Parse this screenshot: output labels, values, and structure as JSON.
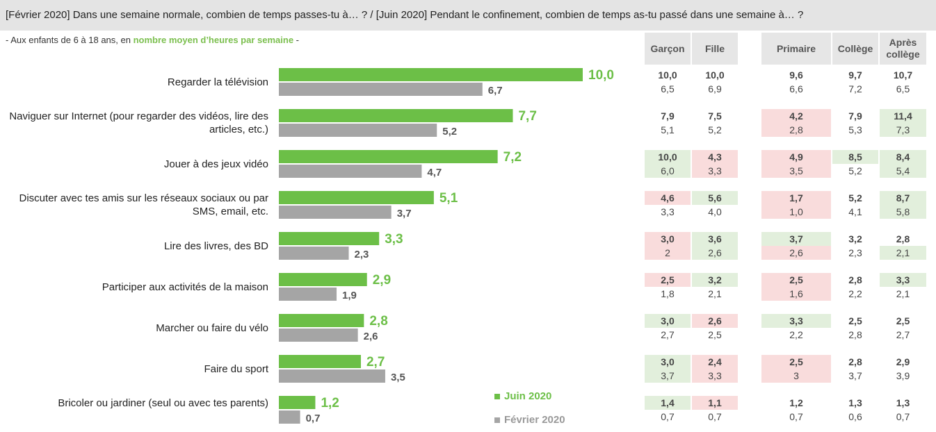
{
  "title": "[Février 2020] Dans une semaine normale, combien de temps passes-tu à… ? / [Juin 2020] Pendant le confinement, combien de temps as-tu passé dans une semaine à… ?",
  "subtitle": {
    "prefix": "- Aux enfants de 6 à 18 ans, en ",
    "highlight": "nombre moyen d’heures par semaine",
    "suffix": " -"
  },
  "colors": {
    "juin": "#6cbf47",
    "fevrier": "#a5a5a5",
    "header_bg": "#e6e6e6",
    "positive_bg": "#e2efdc",
    "negative_bg": "#f9dcdc"
  },
  "legend": {
    "juin": "Juin 2020",
    "fevrier": "Février 2020"
  },
  "table_headers": [
    "Garçon",
    "Fille",
    "Primaire",
    "Collège",
    "Après collège"
  ],
  "chart_data": {
    "type": "bar",
    "orientation": "horizontal",
    "categories": [
      "Regarder la télévision",
      "Naviguer sur Internet (pour regarder des vidéos, lire des articles, etc.)",
      "Jouer à des jeux vidéo",
      "Discuter avec tes amis sur les réseaux sociaux ou par SMS, email, etc.",
      "Lire des livres, des BD",
      "Participer aux activités de la maison",
      "Marcher ou faire du vélo",
      "Faire du sport",
      "Bricoler ou jardiner (seul ou avec tes parents)"
    ],
    "series": [
      {
        "name": "Juin 2020",
        "values": [
          "10,0",
          "7,7",
          "7,2",
          "5,1",
          "3,3",
          "2,9",
          "2,8",
          "2,7",
          "1,2"
        ]
      },
      {
        "name": "Février 2020",
        "values": [
          "6,7",
          "5,2",
          "4,7",
          "3,7",
          "2,3",
          "1,9",
          "2,6",
          "3,5",
          "0,7"
        ]
      }
    ],
    "xlim": [
      0,
      10
    ],
    "legend_position": "bottom-right"
  },
  "breakdown": [
    {
      "juin": [
        "10,0",
        "10,0",
        "9,6",
        "9,7",
        "10,7"
      ],
      "fev": [
        "6,5",
        "6,9",
        "6,6",
        "7,2",
        "6,5"
      ],
      "juin_bg": [
        "",
        "",
        "",
        "",
        ""
      ],
      "fev_bg": [
        "",
        "",
        "",
        "",
        ""
      ]
    },
    {
      "juin": [
        "7,9",
        "7,5",
        "4,2",
        "7,9",
        "11,4"
      ],
      "fev": [
        "5,1",
        "5,2",
        "2,8",
        "5,3",
        "7,3"
      ],
      "juin_bg": [
        "",
        "",
        "red",
        "",
        "green"
      ],
      "fev_bg": [
        "",
        "",
        "red",
        "",
        "green"
      ]
    },
    {
      "juin": [
        "10,0",
        "4,3",
        "4,9",
        "8,5",
        "8,4"
      ],
      "fev": [
        "6,0",
        "3,3",
        "3,5",
        "5,2",
        "5,4"
      ],
      "juin_bg": [
        "green",
        "red",
        "red",
        "green",
        "green"
      ],
      "fev_bg": [
        "green",
        "red",
        "red",
        "",
        "green"
      ]
    },
    {
      "juin": [
        "4,6",
        "5,6",
        "1,7",
        "5,2",
        "8,7"
      ],
      "fev": [
        "3,3",
        "4,0",
        "1,0",
        "4,1",
        "5,8"
      ],
      "juin_bg": [
        "red",
        "green",
        "red",
        "",
        "green"
      ],
      "fev_bg": [
        "",
        "",
        "red",
        "",
        "green"
      ]
    },
    {
      "juin": [
        "3,0",
        "3,6",
        "3,7",
        "3,2",
        "2,8"
      ],
      "fev": [
        "2",
        "2,6",
        "2,6",
        "2,3",
        "2,1"
      ],
      "juin_bg": [
        "red",
        "green",
        "green",
        "",
        ""
      ],
      "fev_bg": [
        "red",
        "green",
        "red",
        "",
        "green"
      ]
    },
    {
      "juin": [
        "2,5",
        "3,2",
        "2,5",
        "2,8",
        "3,3"
      ],
      "fev": [
        "1,8",
        "2,1",
        "1,6",
        "2,2",
        "2,1"
      ],
      "juin_bg": [
        "red",
        "green",
        "red",
        "",
        "green"
      ],
      "fev_bg": [
        "",
        "",
        "red",
        "",
        ""
      ]
    },
    {
      "juin": [
        "3,0",
        "2,6",
        "3,3",
        "2,5",
        "2,5"
      ],
      "fev": [
        "2,7",
        "2,5",
        "2,2",
        "2,8",
        "2,7"
      ],
      "juin_bg": [
        "green",
        "red",
        "green",
        "",
        ""
      ],
      "fev_bg": [
        "",
        "",
        "",
        "",
        ""
      ]
    },
    {
      "juin": [
        "3,0",
        "2,4",
        "2,5",
        "2,8",
        "2,9"
      ],
      "fev": [
        "3,7",
        "3,3",
        "3",
        "3,7",
        "3,9"
      ],
      "juin_bg": [
        "green",
        "red",
        "red",
        "",
        ""
      ],
      "fev_bg": [
        "green",
        "red",
        "red",
        "",
        ""
      ]
    },
    {
      "juin": [
        "1,4",
        "1,1",
        "1,2",
        "1,3",
        "1,3"
      ],
      "fev": [
        "0,7",
        "0,7",
        "0,7",
        "0,6",
        "0,7"
      ],
      "juin_bg": [
        "green",
        "red",
        "",
        "",
        ""
      ],
      "fev_bg": [
        "",
        "",
        "",
        "",
        ""
      ]
    }
  ]
}
